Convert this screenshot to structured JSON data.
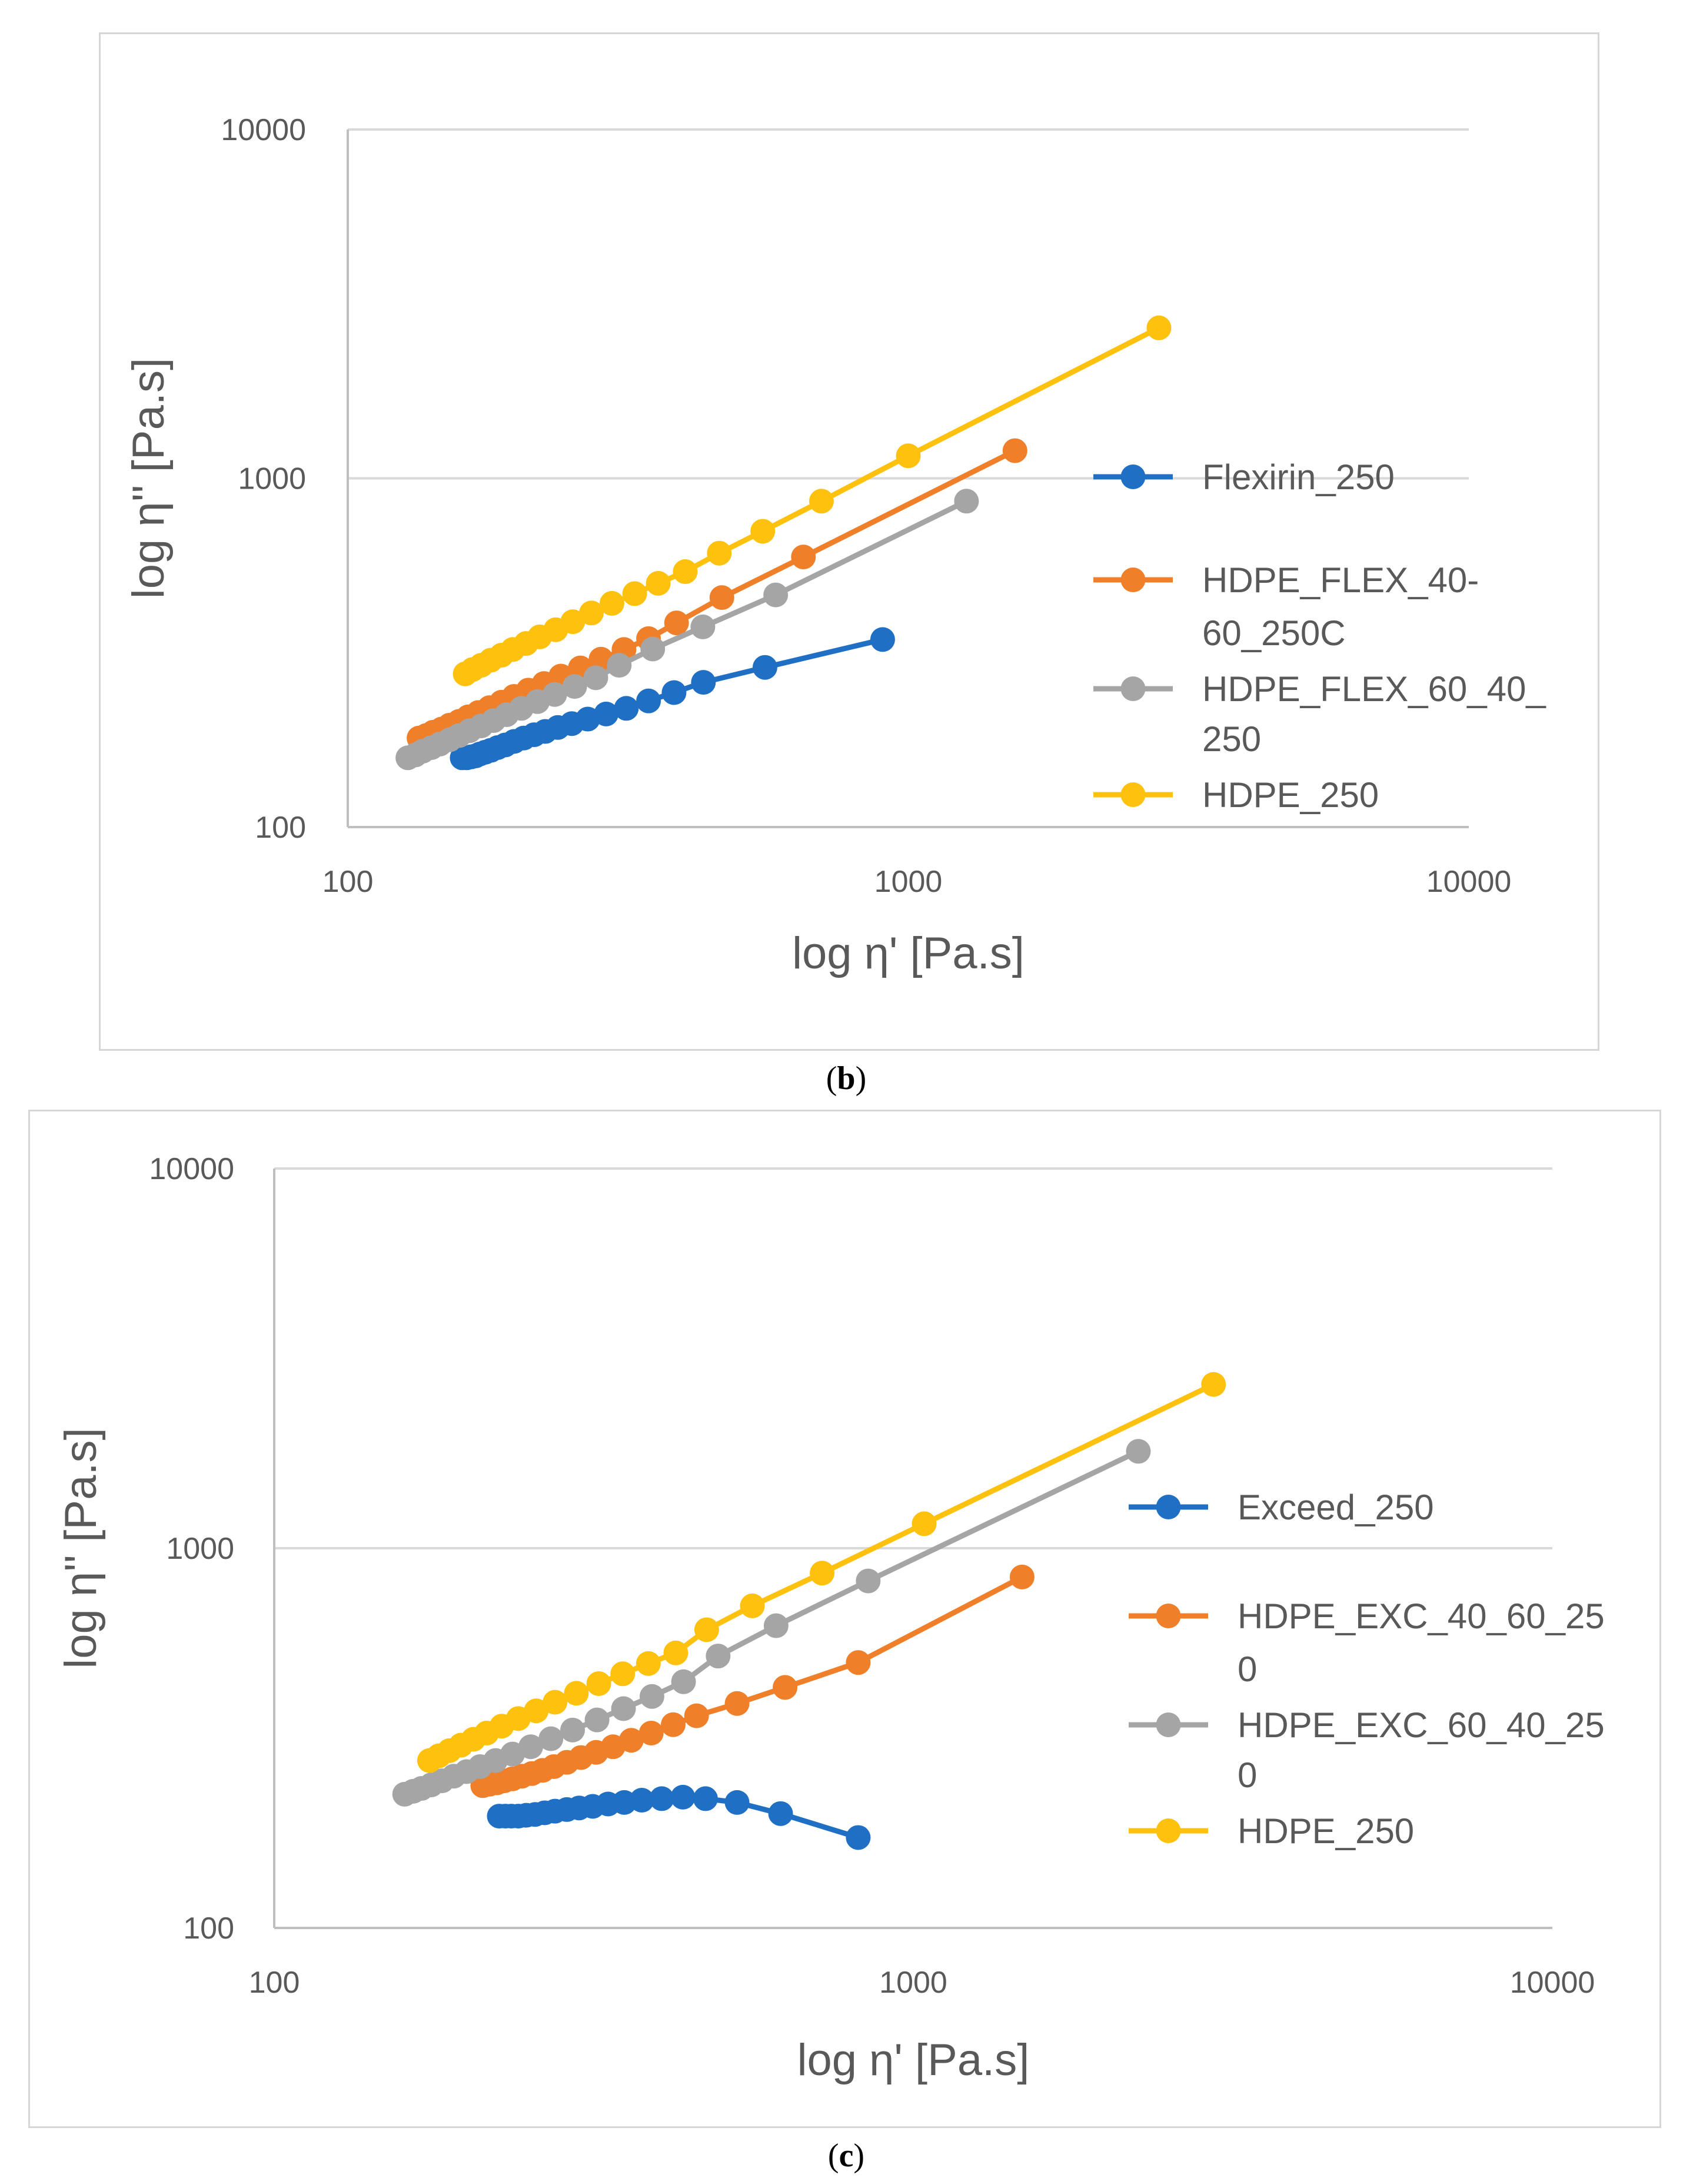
{
  "panels": [
    {
      "caption_letter": "b",
      "chart_data": {
        "type": "scatter",
        "xscale": "log",
        "yscale": "log",
        "xlabel": "log η' [Pa.s]",
        "ylabel": "log η'' [Pa.s]",
        "xlim": [
          100,
          10000
        ],
        "ylim": [
          100,
          10000
        ],
        "xticks": [
          "100",
          "1000",
          "10000"
        ],
        "yticks": [
          "100",
          "1000",
          "10000"
        ],
        "grid": "horizontal",
        "legend": "right",
        "series": [
          {
            "name": "Flexirin_250",
            "legend_lines": [
              "Flexirin_250"
            ],
            "color": "#1f6fc5",
            "x": [
              160,
              163,
              166,
              169,
              172,
              176,
              180,
              185,
              191,
              198,
              206,
              215,
              225,
              237,
              251,
              268,
              289,
              314,
              344,
              382,
              431,
              555,
              900
            ],
            "y": [
              158,
              158,
              159,
              160,
              162,
              164,
              166,
              169,
              172,
              176,
              180,
              184,
              188,
              193,
              198,
              204,
              211,
              219,
              230,
              243,
              260,
              287,
              345
            ]
          },
          {
            "name": "HDPE_FLEX_40-60_250C",
            "legend_lines": [
              "HDPE_FLEX_40-",
              "60_250C"
            ],
            "color": "#f07f2a",
            "x": [
              134,
              138,
              142,
              147,
              152,
              158,
              164,
              171,
              179,
              188,
              198,
              210,
              224,
              240,
              260,
              283,
              311,
              344,
              386,
              465,
              650,
              1550
            ],
            "y": [
              180,
              183,
              187,
              191,
              196,
              201,
              207,
              213,
              220,
              228,
              237,
              247,
              258,
              271,
              286,
              303,
              323,
              347,
              385,
              455,
              595,
              1200
            ]
          },
          {
            "name": "HDPE_FLEX_60_40_250",
            "legend_lines": [
              "HDPE_FLEX_60_40_",
              "250"
            ],
            "color": "#a5a5a5",
            "x": [
              128,
              132,
              136,
              141,
              146,
              152,
              158,
              165,
              173,
              182,
              192,
              204,
              218,
              234,
              254,
              277,
              305,
              350,
              430,
              580,
              1270
            ],
            "y": [
              158,
              161,
              165,
              169,
              173,
              178,
              183,
              189,
              195,
              202,
              210,
              219,
              229,
              240,
              253,
              268,
              291,
              324,
              375,
              463,
              860
            ]
          },
          {
            "name": "HDPE_250",
            "legend_lines": [
              "HDPE_250"
            ],
            "color": "#fdc10e",
            "x": [
              162,
              167,
              173,
              180,
              188,
              197,
              208,
              220,
              235,
              252,
              272,
              296,
              325,
              358,
              400,
              460,
              550,
              700,
              1000,
              2800
            ],
            "y": [
              275,
              283,
              291,
              301,
              311,
              323,
              336,
              351,
              368,
              388,
              411,
              438,
              467,
              500,
              540,
              610,
              705,
              860,
              1160,
              2700
            ]
          }
        ]
      }
    },
    {
      "caption_letter": "c",
      "chart_data": {
        "type": "scatter",
        "xscale": "log",
        "yscale": "log",
        "xlabel": "log η' [Pa.s]",
        "ylabel": "log η'' [Pa.s]",
        "xlim": [
          100,
          10000
        ],
        "ylim": [
          100,
          10000
        ],
        "xticks": [
          "100",
          "1000",
          "10000"
        ],
        "yticks": [
          "100",
          "1000",
          "10000"
        ],
        "grid": "horizontal",
        "legend": "right",
        "series": [
          {
            "name": "Exceed_250",
            "legend_lines": [
              "Exceed_250"
            ],
            "color": "#1f6fc5",
            "x": [
              225,
              230,
              235,
              241,
              248,
              256,
              265,
              275,
              287,
              300,
              315,
              333,
              353,
              376,
              404,
              436,
              473,
              530,
              620,
              820
            ],
            "y": [
              197,
              197,
              197,
              197,
              198,
              199,
              201,
              203,
              205,
              207,
              209,
              212,
              214,
              217,
              219,
              221,
              219,
              214,
              200,
              173
            ]
          },
          {
            "name": "HDPE_EXC_40_60_250",
            "legend_lines": [
              "HDPE_EXC_40_60_25",
              "0"
            ],
            "color": "#f07f2a",
            "x": [
              212,
              217,
              223,
              229,
              236,
              244,
              253,
              263,
              274,
              287,
              302,
              319,
              339,
              362,
              389,
              421,
              458,
              530,
              630,
              820,
              1480
            ],
            "y": [
              237,
              239,
              241,
              244,
              247,
              251,
              255,
              260,
              266,
              273,
              281,
              290,
              300,
              312,
              326,
              343,
              362,
              390,
              430,
              500,
              840
            ]
          },
          {
            "name": "HDPE_EXC_60_40_250",
            "legend_lines": [
              "HDPE_EXC_60_40_25",
              "0"
            ],
            "color": "#a5a5a5",
            "x": [
              160,
              165,
              170,
              176,
              183,
              191,
              200,
              210,
              222,
              236,
              252,
              271,
              293,
              320,
              352,
              390,
              437,
              495,
              610,
              850,
              2250
            ],
            "y": [
              225,
              229,
              233,
              238,
              244,
              251,
              258,
              266,
              276,
              287,
              300,
              315,
              332,
              353,
              378,
              407,
              445,
              520,
              625,
              820,
              1800
            ]
          },
          {
            "name": "HDPE_250",
            "legend_lines": [
              "HDPE_250"
            ],
            "color": "#fdc10e",
            "x": [
              175,
              181,
              188,
              196,
              205,
              215,
              227,
              241,
              257,
              275,
              297,
              322,
              351,
              385,
              425,
              475,
              560,
              720,
              1040,
              2950
            ],
            "y": [
              276,
              284,
              293,
              303,
              314,
              326,
              340,
              356,
              373,
              393,
              415,
              440,
              467,
              497,
              530,
              610,
              705,
              860,
              1160,
              2700
            ]
          }
        ]
      }
    }
  ]
}
